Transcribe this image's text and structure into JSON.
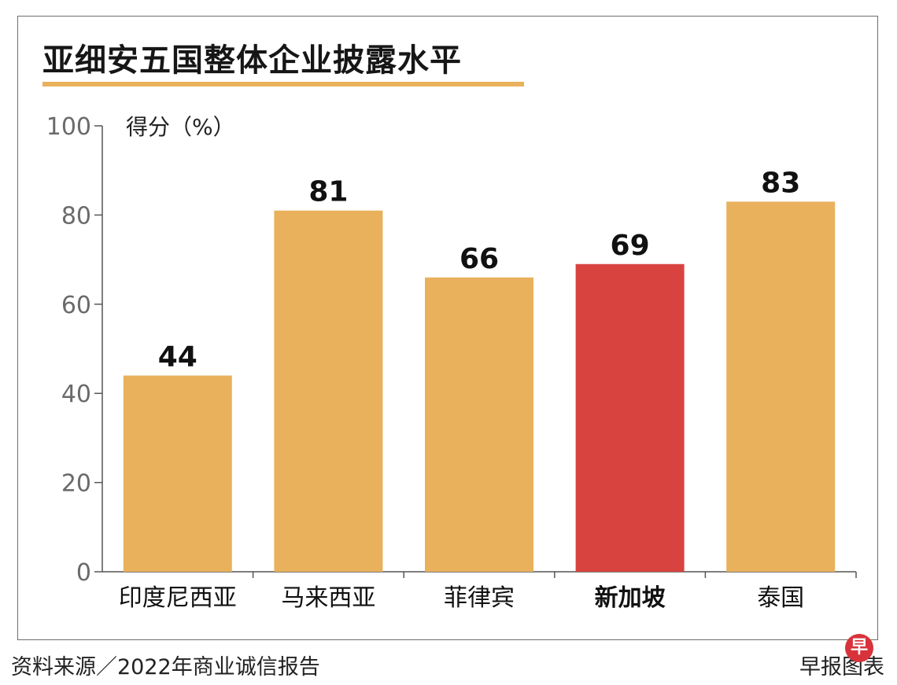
{
  "title": "亚细安五国整体企业披露水平",
  "footer": {
    "source": "资料来源／2022年商业诚信报告",
    "credit": "早报图表",
    "badge": "早"
  },
  "colors": {
    "bar": "#e9b15c",
    "highlight": "#d8433f",
    "axis": "#555555"
  },
  "chart_data": {
    "type": "bar",
    "title": "亚细安五国整体企业披露水平",
    "ylabel": "得分（%）",
    "xlabel": "",
    "ylim": [
      0,
      100
    ],
    "yticks": [
      0,
      20,
      40,
      60,
      80,
      100
    ],
    "categories": [
      "印度尼西亚",
      "马来西亚",
      "菲律宾",
      "新加坡",
      "泰国"
    ],
    "values": [
      44,
      81,
      66,
      69,
      83
    ],
    "highlight_category": "新加坡",
    "grid": false,
    "legend": "none"
  }
}
